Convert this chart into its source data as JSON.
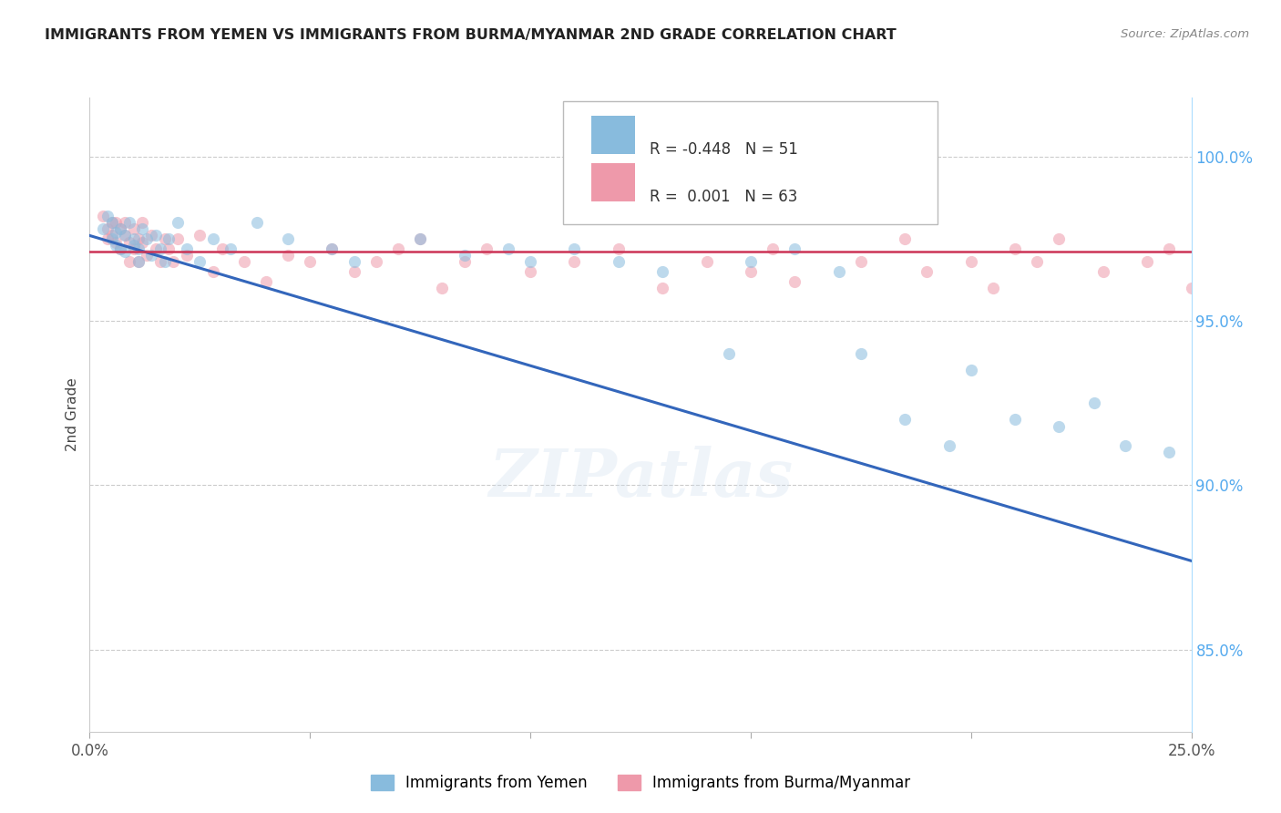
{
  "title": "IMMIGRANTS FROM YEMEN VS IMMIGRANTS FROM BURMA/MYANMAR 2ND GRADE CORRELATION CHART",
  "source": "Source: ZipAtlas.com",
  "ylabel": "2nd Grade",
  "xlim": [
    0.0,
    0.25
  ],
  "ylim": [
    0.825,
    1.018
  ],
  "y_ticks": [
    0.85,
    0.9,
    0.95,
    1.0
  ],
  "y_tick_labels": [
    "85.0%",
    "90.0%",
    "95.0%",
    "100.0%"
  ],
  "x_ticks": [
    0.0,
    0.05,
    0.1,
    0.15,
    0.2,
    0.25
  ],
  "x_tick_labels": [
    "0.0%",
    "",
    "",
    "",
    "",
    "25.0%"
  ],
  "legend_blue_label": "R = -0.448   N = 51",
  "legend_pink_label": "R =  0.001   N = 63",
  "legend_label1": "Immigrants from Yemen",
  "legend_label2": "Immigrants from Burma/Myanmar",
  "blue_color": "#88BBDD",
  "pink_color": "#EE99AA",
  "trendline_blue_color": "#3366BB",
  "trendline_pink_color": "#CC3355",
  "blue_trend_x": [
    0.0,
    0.25
  ],
  "blue_trend_y": [
    0.976,
    0.877
  ],
  "pink_trend_y": [
    0.971,
    0.971
  ],
  "blue_x": [
    0.003,
    0.004,
    0.005,
    0.005,
    0.006,
    0.006,
    0.007,
    0.007,
    0.008,
    0.008,
    0.009,
    0.01,
    0.01,
    0.011,
    0.011,
    0.012,
    0.013,
    0.014,
    0.015,
    0.016,
    0.017,
    0.018,
    0.02,
    0.022,
    0.025,
    0.028,
    0.032,
    0.038,
    0.045,
    0.055,
    0.06,
    0.075,
    0.085,
    0.095,
    0.1,
    0.11,
    0.12,
    0.13,
    0.145,
    0.15,
    0.16,
    0.17,
    0.175,
    0.185,
    0.195,
    0.2,
    0.21,
    0.22,
    0.228,
    0.235,
    0.245
  ],
  "blue_y": [
    0.978,
    0.982,
    0.975,
    0.98,
    0.973,
    0.977,
    0.972,
    0.978,
    0.971,
    0.976,
    0.98,
    0.973,
    0.975,
    0.968,
    0.972,
    0.978,
    0.975,
    0.97,
    0.976,
    0.972,
    0.968,
    0.975,
    0.98,
    0.972,
    0.968,
    0.975,
    0.972,
    0.98,
    0.975,
    0.972,
    0.968,
    0.975,
    0.97,
    0.972,
    0.968,
    0.972,
    0.968,
    0.965,
    0.94,
    0.968,
    0.972,
    0.965,
    0.94,
    0.92,
    0.912,
    0.935,
    0.92,
    0.918,
    0.925,
    0.912,
    0.91
  ],
  "pink_x": [
    0.003,
    0.004,
    0.004,
    0.005,
    0.005,
    0.006,
    0.006,
    0.007,
    0.007,
    0.008,
    0.008,
    0.009,
    0.009,
    0.01,
    0.01,
    0.011,
    0.011,
    0.012,
    0.012,
    0.013,
    0.014,
    0.015,
    0.016,
    0.017,
    0.018,
    0.019,
    0.02,
    0.022,
    0.025,
    0.028,
    0.03,
    0.035,
    0.04,
    0.045,
    0.05,
    0.055,
    0.06,
    0.065,
    0.07,
    0.075,
    0.08,
    0.085,
    0.09,
    0.1,
    0.11,
    0.12,
    0.13,
    0.14,
    0.15,
    0.155,
    0.16,
    0.175,
    0.185,
    0.19,
    0.2,
    0.205,
    0.21,
    0.215,
    0.22,
    0.23,
    0.24,
    0.245,
    0.25
  ],
  "pink_y": [
    0.982,
    0.978,
    0.975,
    0.98,
    0.976,
    0.974,
    0.98,
    0.972,
    0.978,
    0.976,
    0.98,
    0.974,
    0.968,
    0.978,
    0.972,
    0.975,
    0.968,
    0.98,
    0.974,
    0.97,
    0.976,
    0.972,
    0.968,
    0.975,
    0.972,
    0.968,
    0.975,
    0.97,
    0.976,
    0.965,
    0.972,
    0.968,
    0.962,
    0.97,
    0.968,
    0.972,
    0.965,
    0.968,
    0.972,
    0.975,
    0.96,
    0.968,
    0.972,
    0.965,
    0.968,
    0.972,
    0.96,
    0.968,
    0.965,
    0.972,
    0.962,
    0.968,
    0.975,
    0.965,
    0.968,
    0.96,
    0.972,
    0.968,
    0.975,
    0.965,
    0.968,
    0.972,
    0.96
  ]
}
